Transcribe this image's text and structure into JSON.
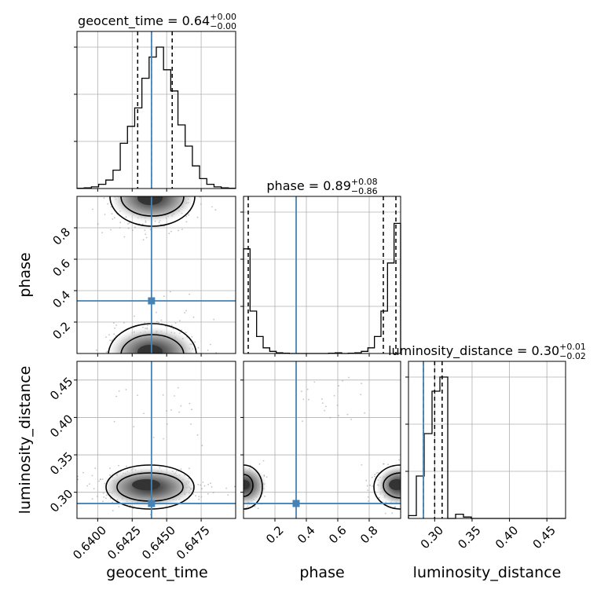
{
  "chart_data": {
    "type": "corner",
    "parameters": [
      "geocent_time",
      "phase",
      "luminosity_distance"
    ],
    "injected_values": {
      "geocent_time": 0.6439,
      "phase": 0.335,
      "luminosity_distance": 0.285
    },
    "titles": [
      {
        "param": "geocent_time",
        "prefix": "geocent_time = ",
        "median": "0.64",
        "plus": "+0.00",
        "minus": "−0.00"
      },
      {
        "param": "phase",
        "prefix": "phase = ",
        "median": "0.89",
        "plus": "+0.08",
        "minus": "−0.86"
      },
      {
        "param": "luminosity_distance",
        "prefix": "luminosity_distance = ",
        "median": "0.30",
        "plus": "+0.01",
        "minus": "−0.02"
      }
    ],
    "axis_labels": {
      "x": [
        "geocent_time",
        "phase",
        "luminosity_distance"
      ],
      "y": [
        "phase",
        "luminosity_distance"
      ]
    },
    "ranges": {
      "geocent_time": [
        0.6385,
        0.65
      ],
      "phase": [
        0.0,
        1.0
      ],
      "luminosity_distance": [
        0.265,
        0.475
      ]
    },
    "ticks": {
      "geocent_time": [
        "0.6400",
        "0.6425",
        "0.6450",
        "0.6475"
      ],
      "phase": [
        "0.2",
        "0.4",
        "0.6",
        "0.8"
      ],
      "luminosity_distance": [
        "0.30",
        "0.35",
        "0.40",
        "0.45"
      ]
    },
    "quantiles": {
      "geocent_time": [
        0.6429,
        0.6439,
        0.6454
      ],
      "phase": [
        0.03,
        0.89,
        0.97
      ],
      "luminosity_distance": [
        0.285,
        0.3,
        0.31
      ]
    },
    "histograms": {
      "geocent_time": [
        0.002,
        0.005,
        0.012,
        0.03,
        0.06,
        0.13,
        0.32,
        0.44,
        0.57,
        0.78,
        0.93,
        1.0,
        0.84,
        0.69,
        0.45,
        0.3,
        0.16,
        0.07,
        0.03,
        0.012,
        0.005,
        0.002
      ],
      "phase": [
        0.74,
        0.3,
        0.12,
        0.04,
        0.015,
        0.005,
        0.002,
        0.0,
        0.0,
        0.0,
        0.0,
        0.0,
        0.0,
        0.002,
        0.005,
        0.0,
        0.002,
        0.005,
        0.015,
        0.04,
        0.12,
        0.3,
        0.64,
        0.92
      ],
      "luminosity_distance": [
        0.02,
        0.3,
        0.6,
        0.9,
        1.0,
        0.0,
        0.03,
        0.01,
        0.0,
        0.0,
        0.0,
        0.0,
        0.0,
        0.0,
        0.0,
        0.0,
        0.0,
        0.0,
        0.0,
        0.0
      ]
    },
    "grid": true,
    "colors": {
      "injection": "#4682b4",
      "contour": "#000000",
      "samples": "#9a9a9a",
      "grid": "#b0b0b0"
    }
  }
}
